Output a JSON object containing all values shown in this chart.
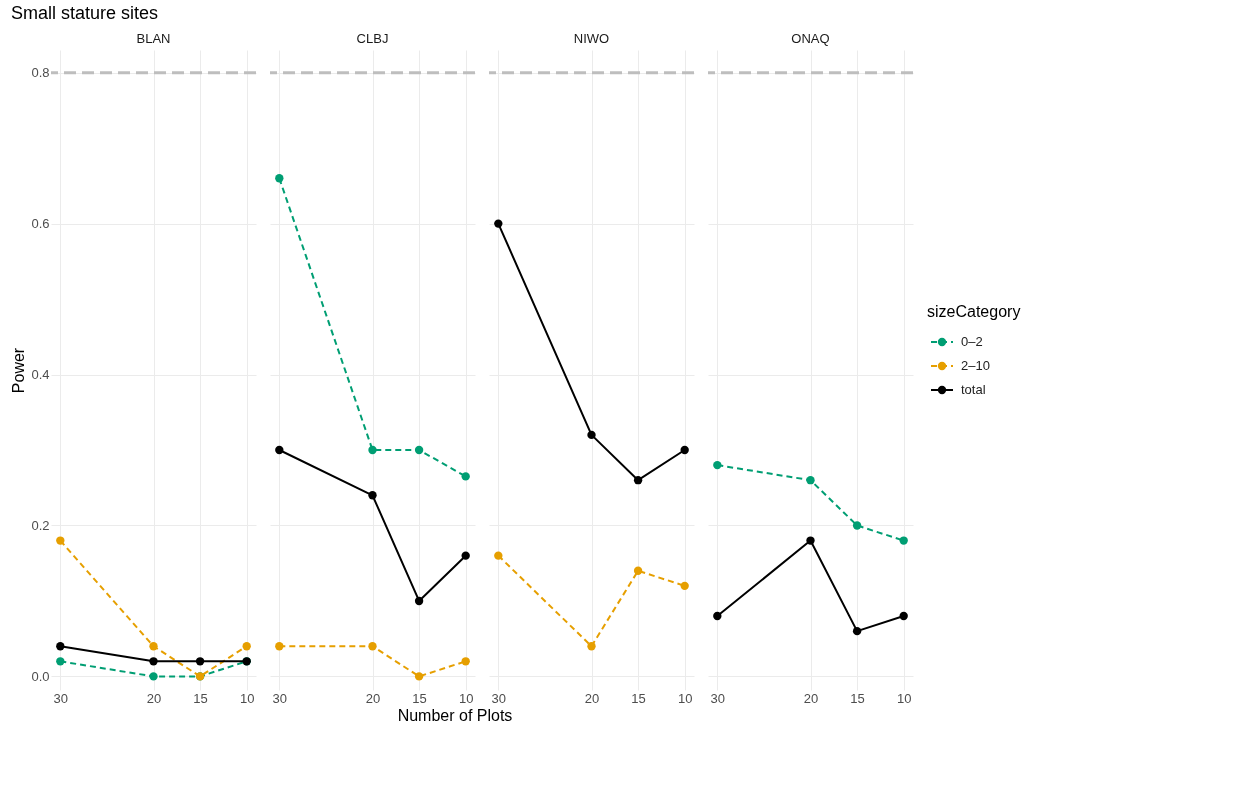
{
  "chart_data": [
    {
      "type": "line",
      "title": "Small stature sites",
      "subtitle": "BLAN",
      "ylabel": "Power",
      "legend": "right",
      "x": [
        30,
        20,
        15,
        10
      ],
      "xlim": [
        31,
        9
      ],
      "xticks": [
        30,
        20,
        15,
        10
      ],
      "ylim": [
        -0.018,
        0.83
      ],
      "yticks": [
        {
          "value": 0,
          "label": "0.0"
        },
        {
          "value": 0.2,
          "label": "0.2"
        },
        {
          "value": 0.4,
          "label": "0.4"
        },
        {
          "value": 0.6,
          "label": "0.6"
        },
        {
          "value": 0.8,
          "label": "0.8"
        }
      ],
      "grid": true,
      "marker": "circle",
      "ref_lines": [
        {
          "axis": "y",
          "value": 0.8,
          "color": "#bebebe",
          "line_style": "dashed"
        }
      ],
      "series": [
        {
          "name": "0–2",
          "color": "#009e73",
          "line_style": "dashed",
          "values": [
            0.02,
            0,
            0,
            0.02
          ]
        },
        {
          "name": "2–10",
          "color": "#e69f00",
          "line_style": "dashed",
          "values": [
            0.18,
            0.04,
            0,
            0.04
          ]
        },
        {
          "name": "total",
          "color": "#000000",
          "line_style": "solid",
          "values": [
            0.04,
            0.02,
            0.02,
            0.02
          ]
        }
      ]
    },
    {
      "type": "line",
      "subtitle": "CLBJ",
      "xlabel": "Number of Plots",
      "legend": "right",
      "x": [
        30,
        20,
        15,
        10
      ],
      "xlim": [
        31,
        9
      ],
      "xticks": [
        30,
        20,
        15,
        10
      ],
      "ylim": [
        -0.018,
        0.83
      ],
      "yticks": [
        {
          "value": 0,
          "label": null
        },
        {
          "value": 0.2,
          "label": null
        },
        {
          "value": 0.4,
          "label": null
        },
        {
          "value": 0.6,
          "label": null
        },
        {
          "value": 0.8,
          "label": null
        }
      ],
      "grid": true,
      "marker": "circle",
      "tick_labels": "x",
      "ref_lines": [
        {
          "axis": "y",
          "value": 0.8,
          "color": "#bebebe",
          "line_style": "dashed"
        }
      ],
      "series": [
        {
          "name": "0–2",
          "color": "#009e73",
          "line_style": "dashed",
          "values": [
            0.66,
            0.3,
            0.3,
            0.265
          ]
        },
        {
          "name": "2–10",
          "color": "#e69f00",
          "line_style": "dashed",
          "values": [
            0.04,
            0.04,
            0,
            0.02
          ]
        },
        {
          "name": "total",
          "color": "#000000",
          "line_style": "solid",
          "values": [
            0.3,
            0.24,
            0.1,
            0.16
          ]
        }
      ]
    },
    {
      "type": "line",
      "subtitle": "NIWO",
      "legend": "right",
      "x": [
        30,
        20,
        15,
        10
      ],
      "xlim": [
        31,
        9
      ],
      "xticks": [
        30,
        20,
        15,
        10
      ],
      "ylim": [
        -0.018,
        0.83
      ],
      "yticks": [
        {
          "value": 0,
          "label": null
        },
        {
          "value": 0.2,
          "label": null
        },
        {
          "value": 0.4,
          "label": null
        },
        {
          "value": 0.6,
          "label": null
        },
        {
          "value": 0.8,
          "label": null
        }
      ],
      "grid": true,
      "marker": "circle",
      "tick_labels": "x",
      "ref_lines": [
        {
          "axis": "y",
          "value": 0.8,
          "color": "#bebebe",
          "line_style": "dashed"
        }
      ],
      "series": [
        {
          "name": "2–10",
          "color": "#e69f00",
          "line_style": "dashed",
          "values": [
            0.16,
            0.04,
            0.14,
            0.12
          ]
        },
        {
          "name": "total",
          "color": "#000000",
          "line_style": "solid",
          "values": [
            0.6,
            0.32,
            0.26,
            0.3
          ]
        }
      ]
    },
    {
      "type": "line",
      "subtitle": "ONAQ",
      "legend_title": "sizeCategory",
      "legend": "right",
      "x": [
        30,
        20,
        15,
        10
      ],
      "xlim": [
        31,
        9
      ],
      "xticks": [
        30,
        20,
        15,
        10
      ],
      "ylim": [
        -0.018,
        0.83
      ],
      "yticks": [
        {
          "value": 0,
          "label": null
        },
        {
          "value": 0.2,
          "label": null
        },
        {
          "value": 0.4,
          "label": null
        },
        {
          "value": 0.6,
          "label": null
        },
        {
          "value": 0.8,
          "label": null
        }
      ],
      "grid": true,
      "marker": "circle",
      "tick_labels": "x",
      "ref_lines": [
        {
          "axis": "y",
          "value": 0.8,
          "color": "#bebebe",
          "line_style": "dashed"
        }
      ],
      "series": [
        {
          "name": "0–2",
          "color": "#009e73",
          "line_style": "dashed",
          "values": [
            0.28,
            0.26,
            0.2,
            0.18
          ]
        },
        {
          "name": "total",
          "color": "#000000",
          "line_style": "solid",
          "values": [
            0.08,
            0.18,
            0.06,
            0.08
          ]
        }
      ]
    }
  ]
}
